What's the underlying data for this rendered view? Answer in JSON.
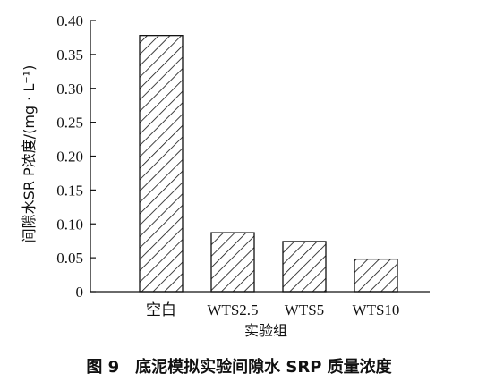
{
  "chart_data": {
    "type": "bar",
    "categories": [
      "空白",
      "WTS2.5",
      "WTS5",
      "WTS10"
    ],
    "values": [
      0.378,
      0.087,
      0.074,
      0.048
    ],
    "xlabel": "实验组",
    "ylabel": "间隙水SR P浓度/(mg · L⁻¹)",
    "ylim": [
      0,
      0.4
    ],
    "yticks": [
      "0",
      "0.05",
      "0.10",
      "0.15",
      "0.20",
      "0.25",
      "0.30",
      "0.35",
      "0.40"
    ],
    "grid": false,
    "bar_fill": "diagonal-hatch",
    "colors": {
      "axis": "#111111",
      "bar_stroke": "#111111",
      "hatch": "#111111",
      "background": "#ffffff"
    }
  },
  "caption": "图 9　底泥模拟实验间隙水 SRP 质量浓度"
}
